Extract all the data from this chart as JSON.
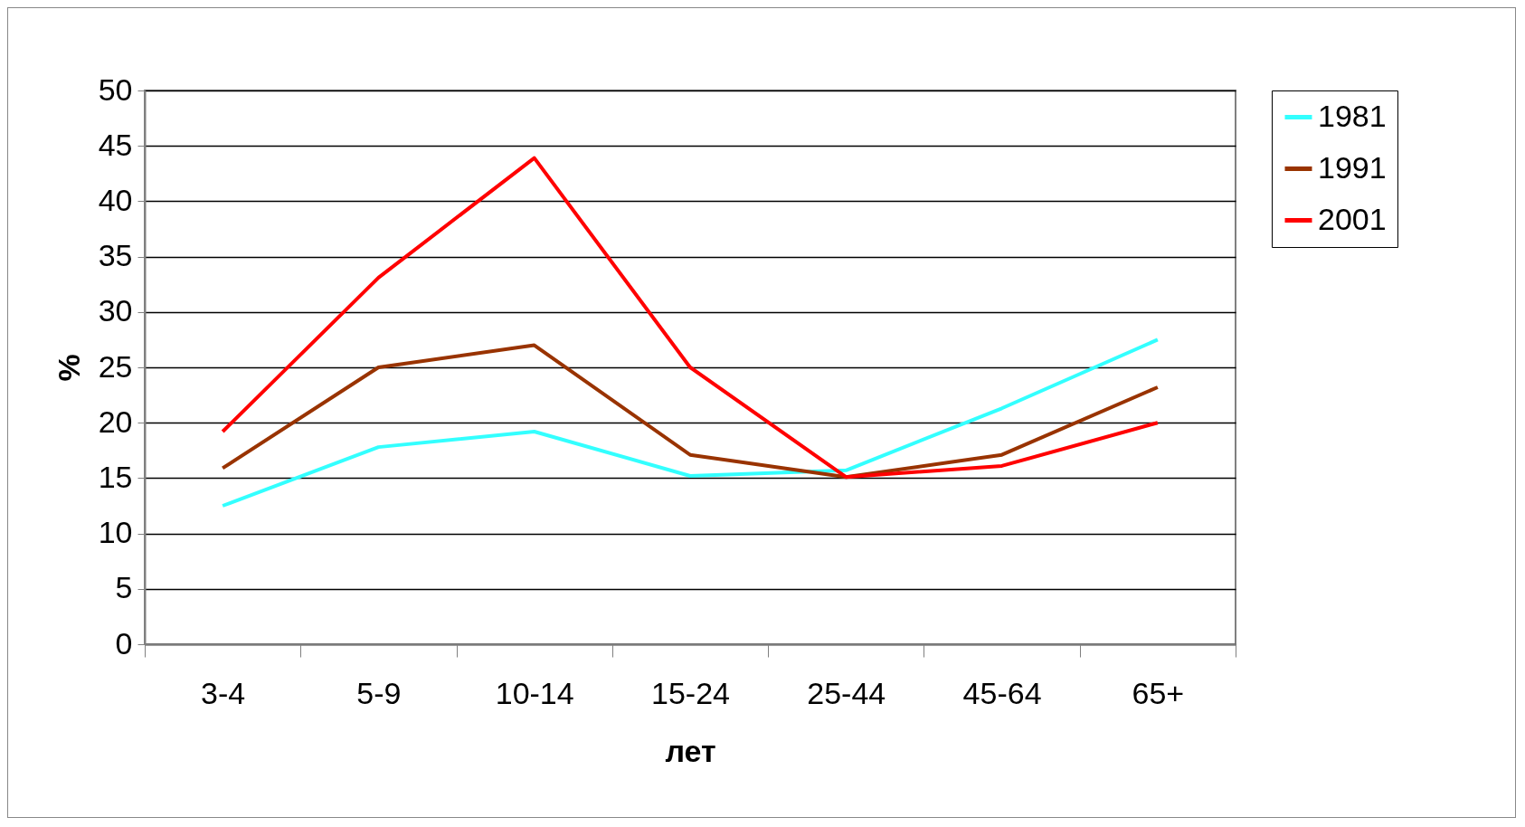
{
  "chart_data": {
    "type": "line",
    "xlabel": "лет",
    "ylabel": "%",
    "categories": [
      "3-4",
      "5-9",
      "10-14",
      "15-24",
      "25-44",
      "45-64",
      "65+"
    ],
    "series": [
      {
        "name": "1981",
        "color": "#33ffff",
        "values": [
          12.5,
          17.8,
          19.2,
          15.2,
          15.7,
          21.3,
          27.5
        ]
      },
      {
        "name": "1991",
        "color": "#993300",
        "values": [
          15.9,
          25,
          27,
          17.1,
          15.1,
          17.1,
          23.2
        ]
      },
      {
        "name": "2001",
        "color": "#ff0000",
        "values": [
          19.2,
          33.1,
          43.9,
          25,
          15.1,
          16.1,
          20
        ]
      }
    ],
    "ylim": [
      0,
      50
    ],
    "yticks": [
      0,
      5,
      10,
      15,
      20,
      25,
      30,
      35,
      40,
      45,
      50
    ],
    "grid": "y",
    "legend": "right",
    "marker": "none",
    "line_style": "solid"
  }
}
